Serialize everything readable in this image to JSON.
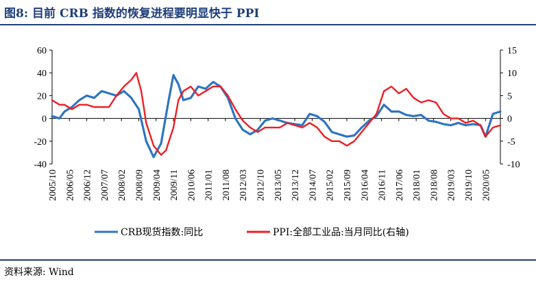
{
  "header": {
    "title": "图8:  目前 CRB 指数的恢复进程要明显快于 PPI"
  },
  "footer": {
    "source": "资料来源:  Wind"
  },
  "chart_data": {
    "type": "line",
    "ylim_left": [
      -40,
      60
    ],
    "ylim_right": [
      -10,
      15
    ],
    "yticks_left": [
      "60",
      "40",
      "20",
      "0",
      "-20",
      "-40"
    ],
    "yticks_right": [
      "15",
      "10",
      "5",
      "0",
      "-5",
      "-10"
    ],
    "categories": [
      "2005/10",
      "2006/05",
      "2006/12",
      "2007/07",
      "2008/02",
      "2008/09",
      "2009/04",
      "2009/11",
      "2010/06",
      "2011/01",
      "2011/08",
      "2012/03",
      "2012/10",
      "2013/05",
      "2013/12",
      "2014/07",
      "2015/02",
      "2015/09",
      "2016/04",
      "2016/11",
      "2017/06",
      "2018/01",
      "2018/08",
      "2019/03",
      "2019/10",
      "2020/05"
    ],
    "legend_position": "bottom",
    "grid": false,
    "series": [
      {
        "name": "CRB现货指数:同比",
        "axis": "left",
        "color": "#2e75c0",
        "x": [
          "2005/10",
          "2006/01",
          "2006/03",
          "2006/06",
          "2006/09",
          "2006/12",
          "2007/03",
          "2007/06",
          "2007/09",
          "2007/12",
          "2008/03",
          "2008/06",
          "2008/09",
          "2008/12",
          "2009/03",
          "2009/06",
          "2009/09",
          "2009/11",
          "2010/01",
          "2010/03",
          "2010/06",
          "2010/09",
          "2010/12",
          "2011/03",
          "2011/06",
          "2011/09",
          "2011/12",
          "2012/03",
          "2012/06",
          "2012/09",
          "2012/12",
          "2013/03",
          "2013/06",
          "2013/09",
          "2013/12",
          "2014/03",
          "2014/06",
          "2014/09",
          "2014/12",
          "2015/03",
          "2015/06",
          "2015/09",
          "2015/12",
          "2016/03",
          "2016/06",
          "2016/09",
          "2016/12",
          "2017/03",
          "2017/06",
          "2017/09",
          "2017/12",
          "2018/03",
          "2018/06",
          "2018/09",
          "2018/12",
          "2019/03",
          "2019/06",
          "2019/09",
          "2019/12",
          "2020/03",
          "2020/05",
          "2020/08",
          "2020/11"
        ],
        "values": [
          2,
          0,
          6,
          10,
          16,
          20,
          18,
          24,
          22,
          20,
          24,
          18,
          8,
          -20,
          -34,
          -22,
          15,
          38,
          30,
          16,
          18,
          28,
          26,
          32,
          28,
          18,
          0,
          -10,
          -14,
          -10,
          -2,
          0,
          -2,
          -4,
          -5,
          -6,
          4,
          2,
          -3,
          -12,
          -14,
          -16,
          -15,
          -8,
          -2,
          2,
          12,
          6,
          6,
          3,
          2,
          3,
          -2,
          -3,
          -5,
          -6,
          -4,
          -6,
          -5,
          -6,
          -16,
          4,
          6
        ]
      },
      {
        "name": "PPI:全部工业品:当月同比(右轴)",
        "axis": "right",
        "color": "#ee1d23",
        "x": [
          "2005/10",
          "2006/01",
          "2006/03",
          "2006/06",
          "2006/09",
          "2006/12",
          "2007/03",
          "2007/06",
          "2007/09",
          "2007/12",
          "2008/03",
          "2008/06",
          "2008/08",
          "2008/10",
          "2008/12",
          "2009/03",
          "2009/06",
          "2009/08",
          "2009/11",
          "2010/01",
          "2010/03",
          "2010/06",
          "2010/09",
          "2010/12",
          "2011/03",
          "2011/06",
          "2011/09",
          "2011/12",
          "2012/03",
          "2012/06",
          "2012/09",
          "2012/12",
          "2013/03",
          "2013/06",
          "2013/09",
          "2013/12",
          "2014/03",
          "2014/06",
          "2014/09",
          "2014/12",
          "2015/03",
          "2015/06",
          "2015/09",
          "2015/12",
          "2016/03",
          "2016/06",
          "2016/09",
          "2016/12",
          "2017/03",
          "2017/06",
          "2017/09",
          "2017/12",
          "2018/03",
          "2018/06",
          "2018/09",
          "2018/12",
          "2019/03",
          "2019/06",
          "2019/09",
          "2019/12",
          "2020/03",
          "2020/05",
          "2020/08",
          "2020/11"
        ],
        "values": [
          4,
          3,
          3,
          2,
          3,
          3,
          2.5,
          2.5,
          2.5,
          5,
          7,
          8.5,
          10,
          6,
          -1,
          -6,
          -8,
          -7,
          -2,
          4,
          6,
          7,
          5,
          6,
          7,
          7,
          5,
          2,
          -0.5,
          -2,
          -3,
          -2,
          -2,
          -2,
          -1,
          -1.5,
          -2,
          -1,
          -2,
          -4,
          -5,
          -5,
          -6,
          -5,
          -3,
          -1,
          1,
          6,
          7,
          5.5,
          6.5,
          4.5,
          3.5,
          4,
          3.5,
          1,
          0,
          0,
          -1,
          -0.5,
          -1.5,
          -4,
          -2,
          -1.5
        ]
      }
    ]
  }
}
